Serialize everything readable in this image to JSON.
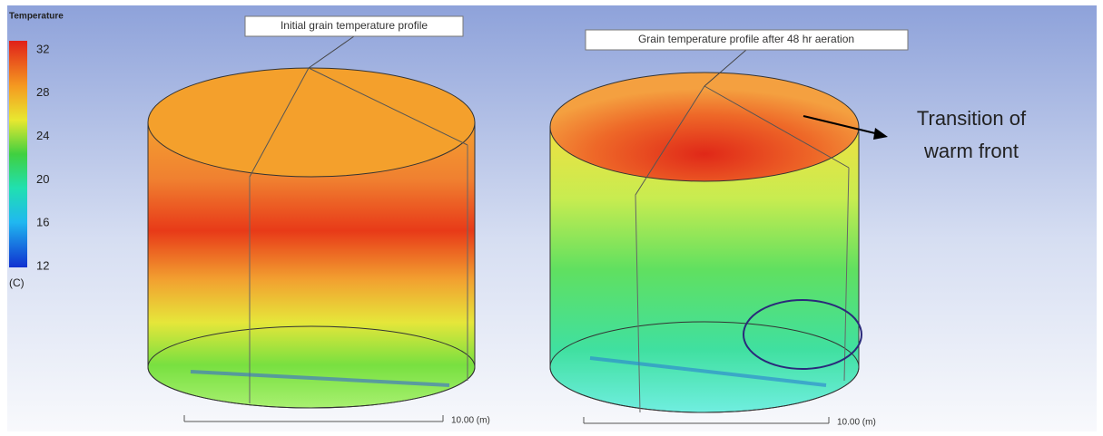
{
  "legend": {
    "title": "Temperature",
    "ticks": [
      32,
      28,
      24,
      20,
      16,
      12
    ],
    "unit": "(C)"
  },
  "panels": [
    {
      "callout": "Initial grain temperature profile",
      "scale_label": "10.00 (m)"
    },
    {
      "callout": "Grain temperature profile after 48 hr aeration",
      "scale_label": "10.00 (m)"
    }
  ],
  "annotation": {
    "line1": "Transition of",
    "line2": "warm front"
  }
}
